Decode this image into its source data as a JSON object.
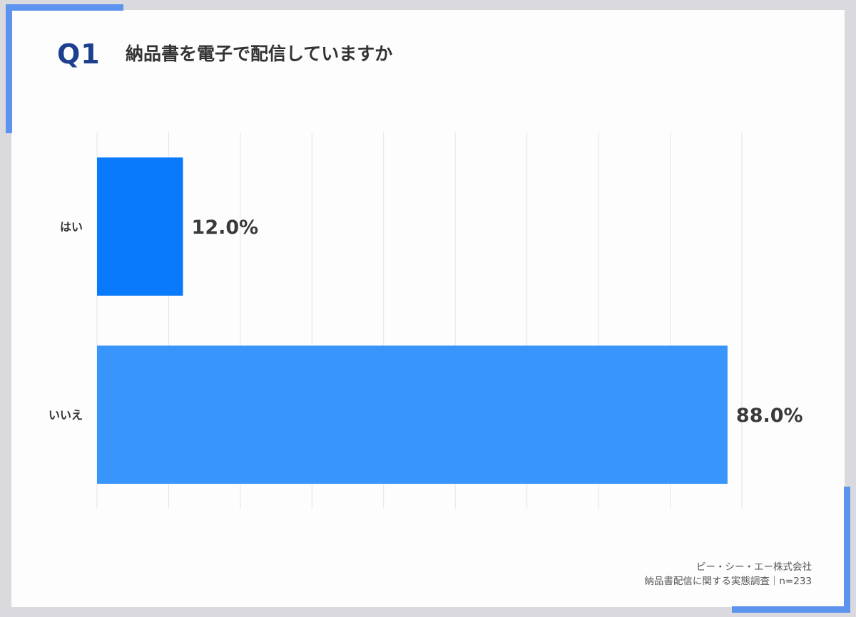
{
  "question": {
    "label": "Q1",
    "title": "納品書を電子で配信していますか"
  },
  "chart_data": {
    "type": "bar",
    "orientation": "horizontal",
    "categories": [
      "はい",
      "いいえ"
    ],
    "values": [
      12.0,
      88.0
    ],
    "value_labels": [
      "12.0%",
      "88.0%"
    ],
    "xlim": [
      0,
      90
    ],
    "grid": true,
    "bar_colors": [
      "#0a7afc",
      "#3795fb"
    ],
    "title": "",
    "xlabel": "",
    "ylabel": ""
  },
  "footer": {
    "company": "ピー・シー・エー株式会社",
    "survey": "納品書配信に関する実態調査｜n=233"
  },
  "colors": {
    "accent": "#5b93ee",
    "question_label": "#1e3f8f"
  }
}
